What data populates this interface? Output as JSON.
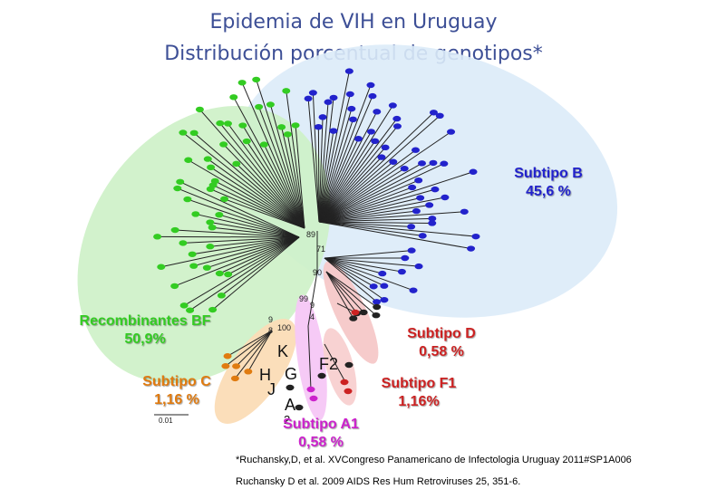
{
  "title": {
    "line1": "Epidemia de VIH en Uruguay",
    "line2": "Distribución porcentual de genotipos*"
  },
  "groups": {
    "subtype_b": {
      "name": "Subtipo B",
      "pct": "45,6 %",
      "color": "#2222cc"
    },
    "recombinants_bf": {
      "name": "Recombinantes  BF",
      "pct": "50,9%",
      "color": "#33cc22"
    },
    "subtype_c": {
      "name": "Subtipo C",
      "pct": "1,16 %",
      "color": "#e07b10"
    },
    "subtype_d": {
      "name": "Subtipo D",
      "pct": "0,58 %",
      "color": "#cc2222"
    },
    "subtype_f1": {
      "name": "Subtipo F1",
      "pct": "1,16%",
      "color": "#cc2222"
    },
    "subtype_a1": {
      "name": "Subtipo A1",
      "pct": "0,58 %",
      "color": "#cc22cc"
    }
  },
  "bootstrap": {
    "n89": "89",
    "n71": "71",
    "n90": "90",
    "n99": "99",
    "n9a": "9",
    "n4": "4",
    "n9b": "9",
    "n8": "8",
    "n100": "100"
  },
  "clades": {
    "k": "K",
    "h": "H",
    "g": "G",
    "j": "J",
    "f2": "F2",
    "a": "A",
    "a2": "2"
  },
  "scale": "0.01",
  "references": {
    "ref1": "*Ruchansky,D, et al. XVCongreso Panamericano de Infectologia Uruguay 2011#SP1A006",
    "ref2": "Ruchansky D et al. 2009 AIDS Res Hum Retroviruses 25, 351-6."
  }
}
